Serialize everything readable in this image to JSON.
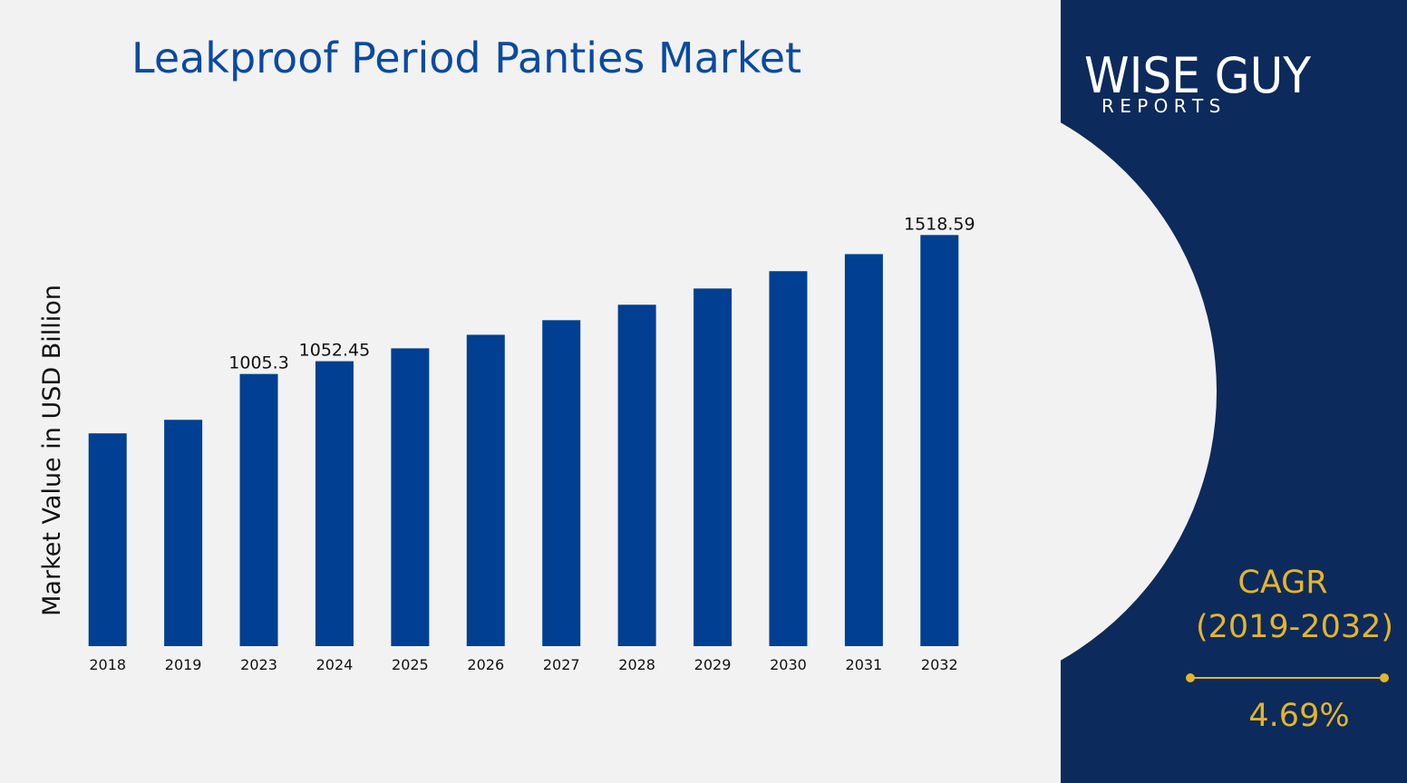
{
  "chart_data": {
    "type": "bar",
    "title": "Leakproof Period Panties Market",
    "y_label": "Market Value in USD Billion",
    "categories": [
      "2018",
      "2019",
      "2023",
      "2024",
      "2025",
      "2026",
      "2027",
      "2028",
      "2029",
      "2030",
      "2031",
      "2032"
    ],
    "values": [
      786,
      836,
      1005.3,
      1052.45,
      1100,
      1150,
      1204,
      1261,
      1321,
      1385,
      1448,
      1518.59
    ],
    "value_labels": [
      null,
      null,
      "1005.3",
      "1052.45",
      null,
      null,
      null,
      null,
      null,
      null,
      null,
      "1518.59"
    ],
    "color": "#003f91",
    "ylim": [
      0,
      1600
    ]
  },
  "logo": {
    "name": "WISE GUY",
    "tagline": "R E P O R T S"
  },
  "cagr": {
    "label": "CAGR",
    "period": "(2019-2032)",
    "value": "4.69%"
  }
}
